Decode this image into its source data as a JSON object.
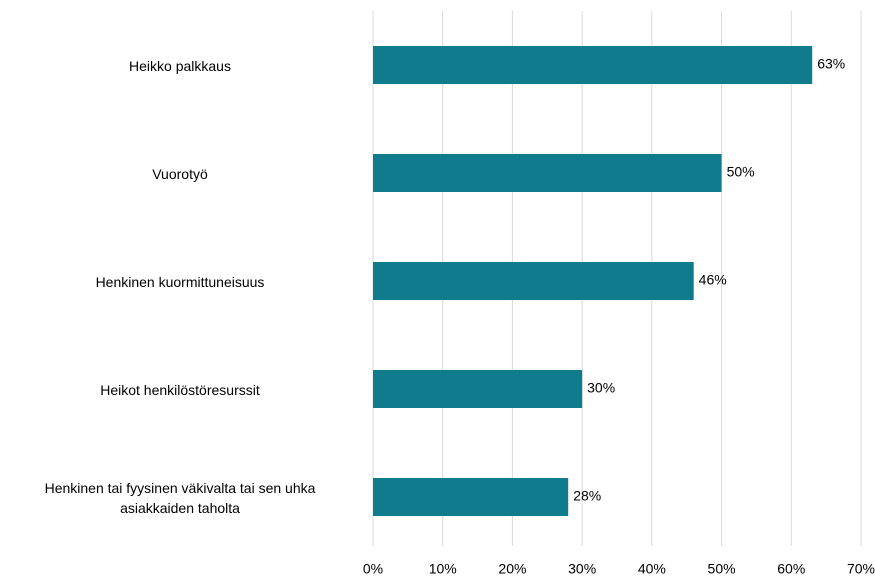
{
  "chart_data": {
    "type": "bar",
    "orientation": "horizontal",
    "categories": [
      "Heikko palkkaus",
      "Vuorotyö",
      "Henkinen kuormittuneisuus",
      "Heikot henkilöstöresurssit",
      "Henkinen tai fyysinen väkivalta tai sen uhka\nasiakkaiden taholta"
    ],
    "values": [
      63,
      50,
      46,
      30,
      28
    ],
    "value_labels": [
      "63%",
      "50%",
      "46%",
      "30%",
      "28%"
    ],
    "color": "#0f7b8c",
    "xlim": [
      0,
      70
    ],
    "xticks": [
      {
        "value": 0,
        "label": "0%"
      },
      {
        "value": 10,
        "label": "10%"
      },
      {
        "value": 20,
        "label": "20%"
      },
      {
        "value": 30,
        "label": "30%"
      },
      {
        "value": 40,
        "label": "40%"
      },
      {
        "value": 50,
        "label": "50%"
      },
      {
        "value": 60,
        "label": "60%"
      },
      {
        "value": 70,
        "label": "70%"
      }
    ],
    "grid": true
  }
}
